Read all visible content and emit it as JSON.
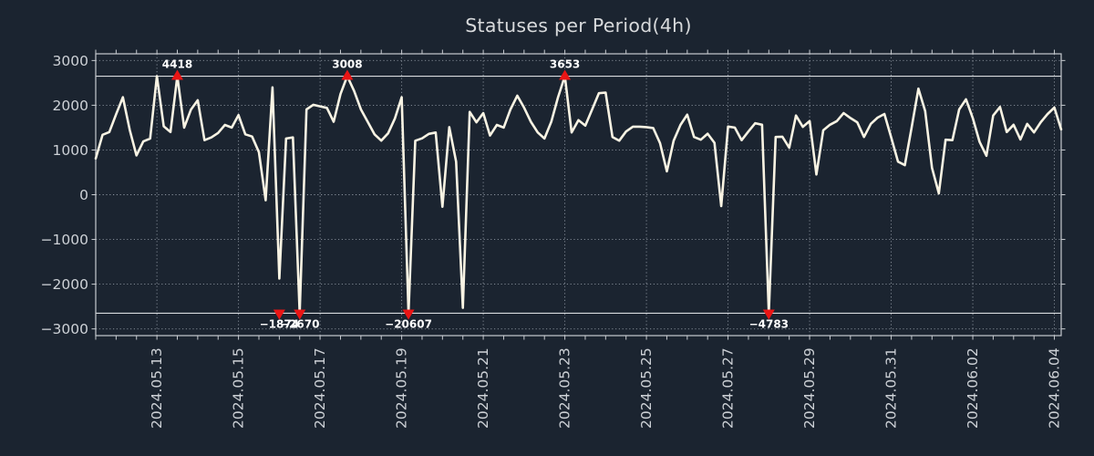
{
  "title": "Statuses per Period(4h)",
  "chart_data": {
    "type": "line",
    "title": "Statuses per Period(4h)",
    "series_name": "statuses-per-4h-period",
    "x_start": "2024.05.11 12:00",
    "interval_hours": 4,
    "values": [
      810,
      1340,
      1400,
      1800,
      2180,
      1450,
      878,
      1190,
      1255,
      2690,
      1529,
      1400,
      4418,
      1500,
      1900,
      2112,
      1220,
      1280,
      1380,
      1560,
      1500,
      1780,
      1350,
      1300,
      950,
      -125,
      2400,
      -1874,
      1255,
      1280,
      -2670,
      1906,
      2010,
      1975,
      1940,
      1632,
      2250,
      3008,
      2320,
      1906,
      1632,
      1350,
      1210,
      1372,
      1700,
      2180,
      -20607,
      1207,
      1260,
      1360,
      1390,
      -270,
      1510,
      740,
      -2530,
      1852,
      1619,
      1824,
      1323,
      1560,
      1500,
      1906,
      2215,
      1950,
      1632,
      1393,
      1255,
      1632,
      2180,
      3653,
      1393,
      1667,
      1543,
      1900,
      2270,
      2284,
      1290,
      1207,
      1413,
      1520,
      1520,
      1510,
      1490,
      1152,
      521,
      1207,
      1560,
      1790,
      1290,
      1230,
      1365,
      1160,
      -254,
      1523,
      1500,
      1220,
      1413,
      1598,
      1564,
      -4783,
      1290,
      1297,
      1050,
      1770,
      1516,
      1646,
      453,
      1440,
      1564,
      1646,
      1824,
      1714,
      1619,
      1290,
      1584,
      1722,
      1804,
      1276,
      740,
      660,
      1496,
      2372,
      1872,
      600,
      30,
      1230,
      1220,
      1906,
      2133,
      1714,
      1180,
      870,
      1770,
      1961,
      1400,
      1564,
      1235,
      1584,
      1393,
      1620,
      1804,
      1950,
      1460
    ],
    "x_tick_labels": [
      "2024.05.13",
      "2024.05.15",
      "2024.05.17",
      "2024.05.19",
      "2024.05.21",
      "2024.05.23",
      "2024.05.25",
      "2024.05.27",
      "2024.05.29",
      "2024.05.31",
      "2024.06.02",
      "2024.06.04"
    ],
    "x_tick_indices": [
      9,
      21,
      33,
      45,
      57,
      69,
      81,
      93,
      105,
      117,
      129,
      141
    ],
    "minor_tick_every": 3,
    "yticks": [
      -3000,
      -2000,
      -1000,
      0,
      1000,
      2000,
      3000
    ],
    "ylim": [
      -3150,
      3150
    ],
    "clip_value": 2650,
    "grid": true,
    "legend": false,
    "annotations": [
      {
        "index": 12,
        "label": "4418",
        "value": 4418,
        "type": "max"
      },
      {
        "index": 37,
        "label": "3008",
        "value": 3008,
        "type": "max"
      },
      {
        "index": 69,
        "label": "3653",
        "value": 3653,
        "type": "max"
      },
      {
        "index": 27,
        "label": "−1874",
        "value": -1874,
        "type": "min"
      },
      {
        "index": 30,
        "label": "−2670",
        "value": -2670,
        "type": "min"
      },
      {
        "index": 46,
        "label": "−20607",
        "value": -20607,
        "type": "min"
      },
      {
        "index": 99,
        "label": "−4783",
        "value": -4783,
        "type": "min"
      }
    ],
    "colors": {
      "background": "#1b2430",
      "line": "#f8f3e3",
      "marker": "#ea1515",
      "grid": "#98a0aa",
      "frame": "#c7cbd0",
      "clip_line": "#d8dbde",
      "axis_text": "#cdd1d6",
      "title_text": "#d8dadc",
      "annotation_text": "#ffffff"
    }
  }
}
